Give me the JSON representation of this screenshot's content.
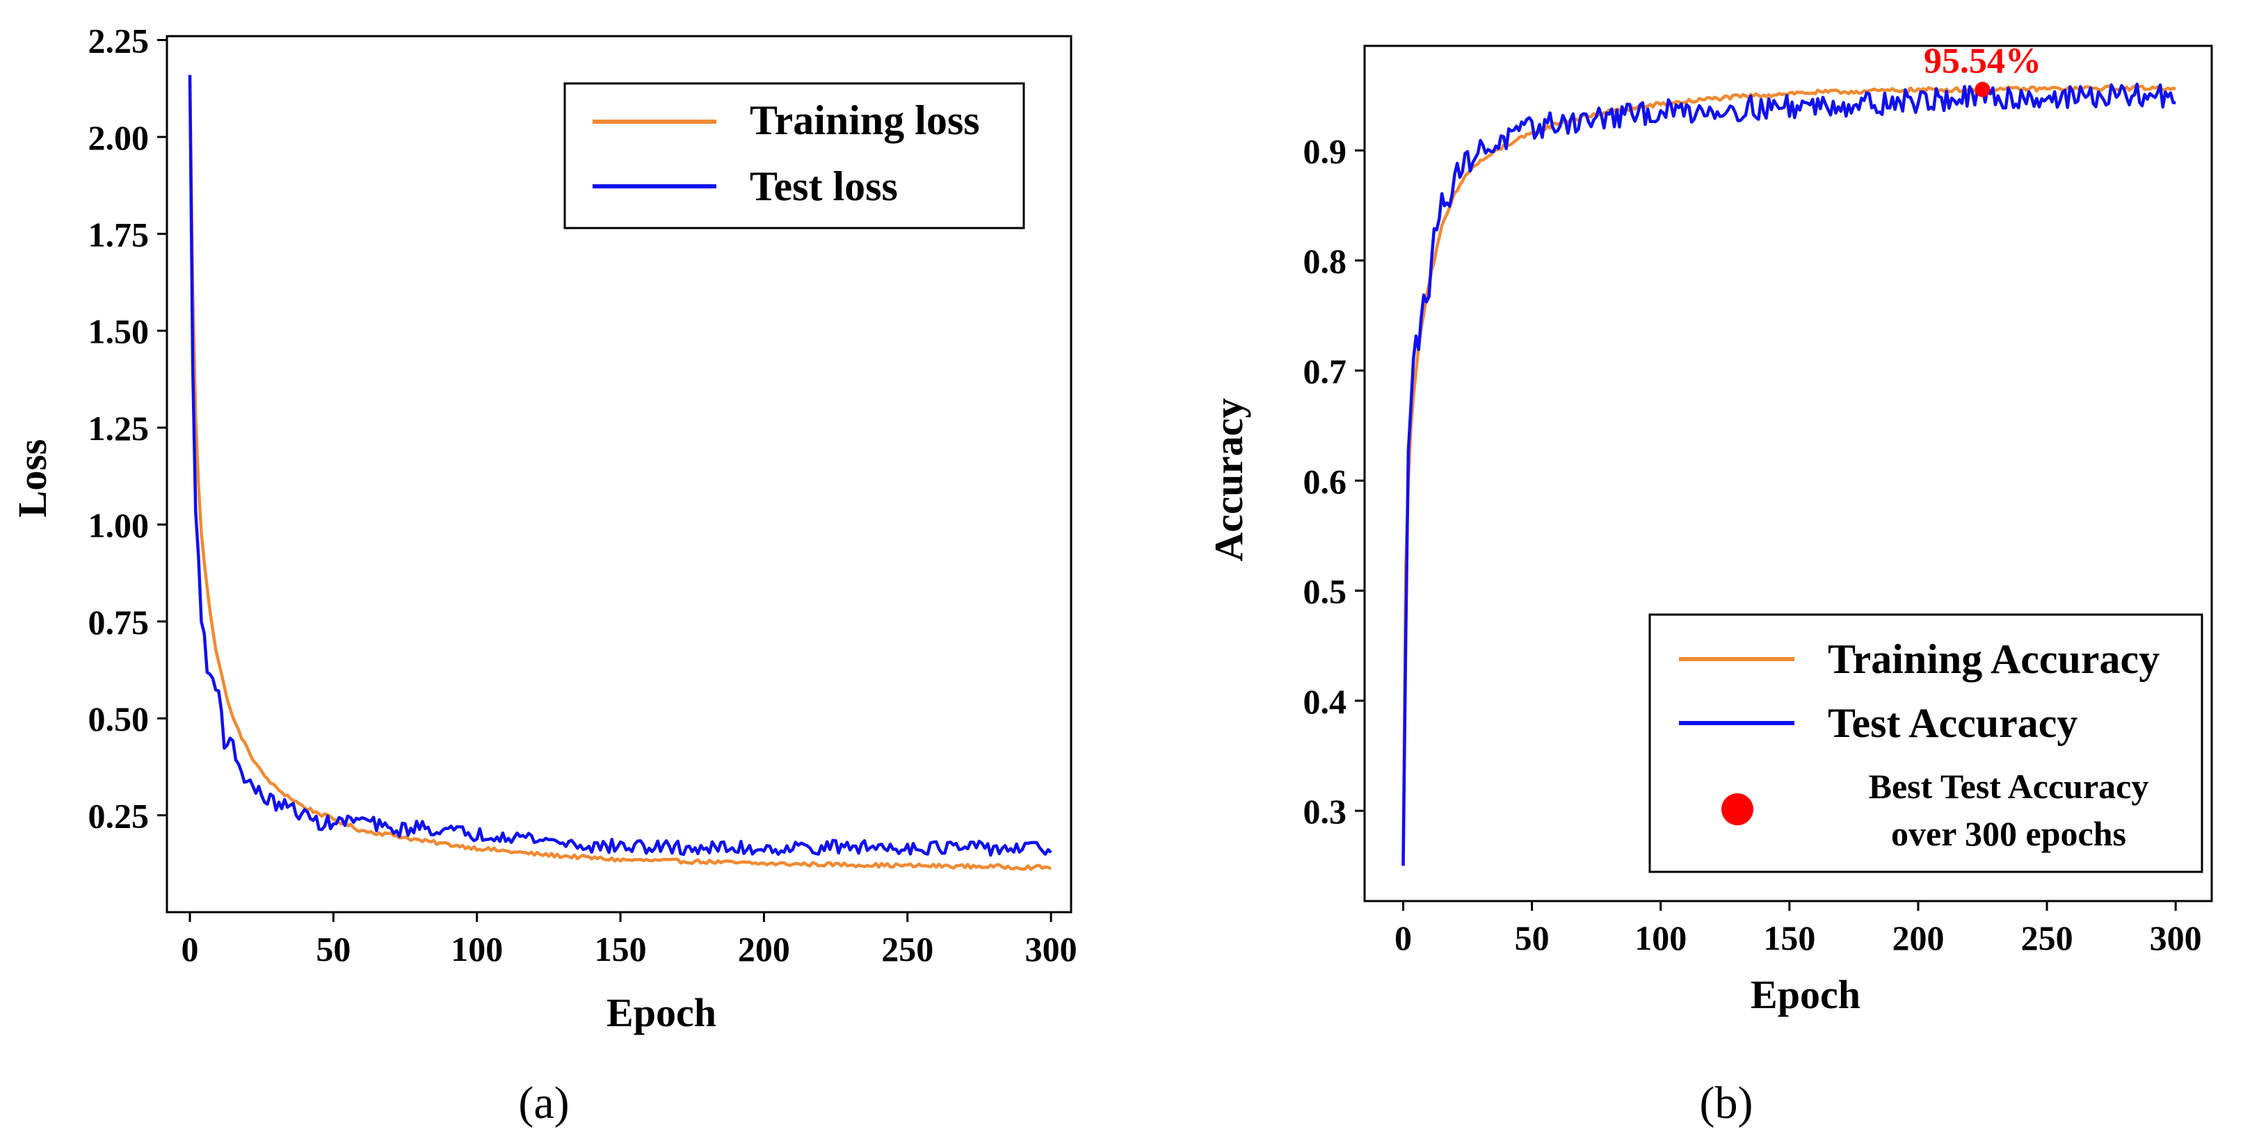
{
  "colors": {
    "training": "#f08a33",
    "test": "#1010f0",
    "best_marker": "#ff0000",
    "axis": "#000000"
  },
  "chart_data": [
    {
      "type": "line",
      "panel_label": "(a)",
      "xlabel": "Epoch",
      "ylabel": "Loss",
      "xlim": [
        -8,
        307
      ],
      "ylim": [
        0.0,
        2.26
      ],
      "xticks": [
        0,
        50,
        100,
        150,
        200,
        250,
        300
      ],
      "xtick_labels": [
        "0",
        "50",
        "100",
        "150",
        "200",
        "250",
        "300"
      ],
      "yticks": [
        0.25,
        0.5,
        0.75,
        1.0,
        1.25,
        1.5,
        1.75,
        2.0,
        2.25
      ],
      "ytick_labels": [
        "0.25",
        "0.50",
        "0.75",
        "1.00",
        "1.25",
        "1.50",
        "1.75",
        "2.00",
        "2.25"
      ],
      "grid": false,
      "legend": {
        "placement": "top-right",
        "entries": [
          "Training loss",
          "Test loss"
        ]
      },
      "series": [
        {
          "name": "Training loss",
          "key": "training",
          "x": [
            0,
            1,
            2,
            3,
            4,
            5,
            7,
            9,
            12,
            15,
            20,
            25,
            30,
            40,
            50,
            60,
            70,
            80,
            90,
            100,
            120,
            150,
            180,
            200,
            225,
            250,
            275,
            300
          ],
          "values": [
            2.15,
            1.6,
            1.28,
            1.1,
            0.98,
            0.9,
            0.78,
            0.68,
            0.58,
            0.5,
            0.42,
            0.36,
            0.32,
            0.27,
            0.24,
            0.21,
            0.2,
            0.185,
            0.175,
            0.165,
            0.15,
            0.135,
            0.13,
            0.125,
            0.123,
            0.12,
            0.118,
            0.115
          ],
          "noise": 0.005
        },
        {
          "name": "Test loss",
          "key": "test",
          "x": [
            0,
            1,
            2,
            3,
            4,
            5,
            6,
            8,
            10,
            12,
            15,
            18,
            20,
            25,
            30,
            35,
            40,
            45,
            50,
            60,
            70,
            80,
            90,
            100,
            110,
            120,
            130,
            140,
            150,
            175,
            200,
            225,
            250,
            275,
            300
          ],
          "values": [
            2.16,
            1.4,
            1.05,
            0.9,
            0.75,
            0.72,
            0.62,
            0.6,
            0.58,
            0.44,
            0.43,
            0.36,
            0.34,
            0.3,
            0.28,
            0.27,
            0.25,
            0.23,
            0.23,
            0.24,
            0.21,
            0.22,
            0.21,
            0.2,
            0.2,
            0.19,
            0.18,
            0.17,
            0.17,
            0.165,
            0.165,
            0.168,
            0.168,
            0.165,
            0.165
          ],
          "noise": 0.018
        }
      ]
    },
    {
      "type": "line",
      "panel_label": "(b)",
      "xlabel": "Epoch",
      "ylabel": "Accuracy",
      "xlim": [
        -15,
        314
      ],
      "ylim": [
        0.218,
        0.995
      ],
      "xticks": [
        0,
        50,
        100,
        150,
        200,
        250,
        300
      ],
      "xtick_labels": [
        "0",
        "50",
        "100",
        "150",
        "200",
        "250",
        "300"
      ],
      "yticks": [
        0.3,
        0.4,
        0.5,
        0.6,
        0.7,
        0.8,
        0.9
      ],
      "ytick_labels": [
        "0.3",
        "0.4",
        "0.5",
        "0.6",
        "0.7",
        "0.8",
        "0.9"
      ],
      "grid": false,
      "legend": {
        "placement": "bottom-right",
        "entries": [
          "Training Accuracy",
          "Test Accuracy",
          "Best Test Accuracy over 300 epochs"
        ]
      },
      "annotation": {
        "text": "95.54%",
        "x": 225,
        "y": 0.9554
      },
      "series": [
        {
          "name": "Training Accuracy",
          "key": "training",
          "x": [
            0,
            1,
            2,
            3,
            5,
            7,
            10,
            12,
            15,
            20,
            25,
            30,
            40,
            50,
            60,
            70,
            80,
            100,
            120,
            150,
            200,
            250,
            300
          ],
          "values": [
            0.25,
            0.52,
            0.6,
            0.65,
            0.7,
            0.74,
            0.78,
            0.8,
            0.83,
            0.86,
            0.88,
            0.89,
            0.905,
            0.915,
            0.925,
            0.93,
            0.935,
            0.942,
            0.947,
            0.952,
            0.955,
            0.956,
            0.957
          ],
          "noise": 0.002
        },
        {
          "name": "Test Accuracy",
          "key": "test",
          "x": [
            0,
            1,
            2,
            3,
            4,
            5,
            6,
            8,
            10,
            12,
            15,
            18,
            20,
            25,
            30,
            40,
            50,
            60,
            80,
            100,
            150,
            200,
            225,
            250,
            300
          ],
          "values": [
            0.25,
            0.45,
            0.62,
            0.67,
            0.72,
            0.74,
            0.73,
            0.77,
            0.76,
            0.83,
            0.85,
            0.86,
            0.88,
            0.89,
            0.9,
            0.91,
            0.92,
            0.925,
            0.93,
            0.935,
            0.94,
            0.945,
            0.948,
            0.948,
            0.95
          ],
          "noise": 0.011
        }
      ],
      "best_point": {
        "label": "Best Test Accuracy over 300 epochs",
        "epoch": 225,
        "accuracy": 0.9554
      }
    }
  ]
}
